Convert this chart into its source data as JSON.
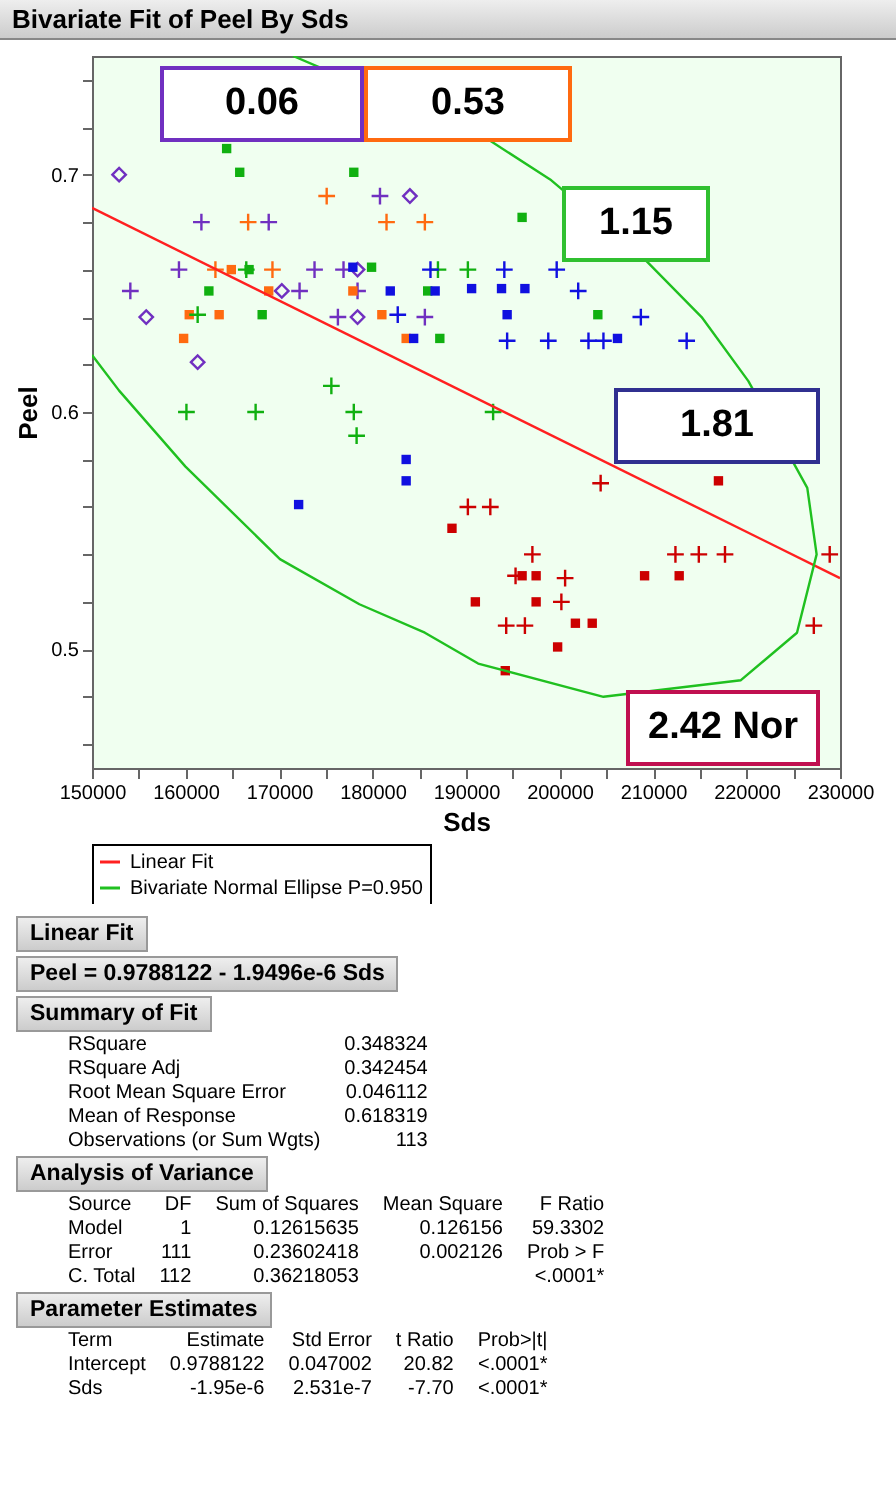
{
  "chart_data": {
    "type": "scatter",
    "title": "Bivariate Fit of Peel By Sds",
    "xlabel": "Sds",
    "ylabel": "Peel",
    "xlim": [
      150000,
      230000
    ],
    "xticks": [
      150000,
      {
        "value": 155000,
        "label": null
      },
      160000,
      {
        "value": 165000,
        "label": null
      },
      170000,
      {
        "value": 175000,
        "label": null
      },
      180000,
      {
        "value": 185000,
        "label": null
      },
      190000,
      {
        "value": 195000,
        "label": null
      },
      200000,
      {
        "value": 205000,
        "label": null
      },
      210000,
      {
        "value": 215000,
        "label": null
      },
      220000,
      {
        "value": 225000,
        "label": null
      },
      230000
    ],
    "ylim": [
      0.45,
      0.75
    ],
    "yticks": [
      {
        "value": 0.46,
        "label": null
      },
      {
        "value": 0.48,
        "label": null
      },
      0.5,
      {
        "value": 0.52,
        "label": null
      },
      {
        "value": 0.54,
        "label": null
      },
      {
        "value": 0.56,
        "label": null
      },
      {
        "value": 0.58,
        "label": null
      },
      0.6,
      {
        "value": 0.62,
        "label": null
      },
      {
        "value": 0.64,
        "label": null
      },
      {
        "value": 0.66,
        "label": null
      },
      {
        "value": 0.68,
        "label": null
      },
      0.7,
      {
        "value": 0.72,
        "label": null
      },
      {
        "value": 0.74,
        "label": null
      }
    ],
    "legend": "bottom",
    "series": [
      {
        "type": "scatter",
        "color": "#7030c0",
        "marker": "diamond",
        "x": [
          152900,
          184000,
          170300,
          155800,
          178400,
          161300,
          178400
        ],
        "values": [
          0.7,
          0.691,
          0.651,
          0.64,
          0.64,
          0.621,
          0.66
        ]
      },
      {
        "type": "scatter",
        "color": "#7030c0",
        "marker": "cross",
        "x": [
          180800,
          161700,
          168900,
          159300,
          173800,
          176900,
          154100,
          172200,
          176300,
          178400,
          185600
        ],
        "values": [
          0.691,
          0.68,
          0.68,
          0.66,
          0.66,
          0.66,
          0.651,
          0.651,
          0.64,
          0.651,
          0.64
        ]
      },
      {
        "type": "scatter",
        "color": "#ff6a10",
        "marker": "cross",
        "x": [
          175100,
          166700,
          181500,
          185600,
          163200,
          169300
        ],
        "values": [
          0.691,
          0.68,
          0.68,
          0.68,
          0.66,
          0.66
        ]
      },
      {
        "type": "scatter",
        "color": "#ff6a10",
        "marker": "square",
        "x": [
          164900,
          168900,
          160400,
          163600,
          159800,
          181000,
          183600,
          177900
        ],
        "values": [
          0.66,
          0.651,
          0.641,
          0.641,
          0.631,
          0.641,
          0.631,
          0.651
        ]
      },
      {
        "type": "scatter",
        "color": "#10b010",
        "marker": "square",
        "x": [
          164400,
          165800,
          178000,
          166800,
          179900,
          162500,
          168200,
          185900,
          187200,
          196000,
          204100
        ],
        "values": [
          0.711,
          0.701,
          0.701,
          0.66,
          0.661,
          0.651,
          0.641,
          0.651,
          0.631,
          0.682,
          0.641
        ]
      },
      {
        "type": "scatter",
        "color": "#10b010",
        "marker": "cross",
        "x": [
          161300,
          166500,
          175600,
          187000,
          190200,
          160100,
          167500,
          178000,
          178300,
          192900
        ],
        "values": [
          0.641,
          0.66,
          0.611,
          0.66,
          0.66,
          0.6,
          0.6,
          0.6,
          0.59,
          0.6
        ]
      },
      {
        "type": "scatter",
        "color": "#1010e0",
        "marker": "square",
        "x": [
          177900,
          181900,
          186700,
          184400,
          190600,
          193800,
          196300,
          194400,
          206200,
          183600,
          183600,
          172100
        ],
        "values": [
          0.661,
          0.651,
          0.651,
          0.631,
          0.652,
          0.652,
          0.652,
          0.641,
          0.631,
          0.58,
          0.571,
          0.561
        ]
      },
      {
        "type": "scatter",
        "color": "#1010e0",
        "marker": "cross",
        "x": [
          186200,
          182700,
          194100,
          199700,
          202000,
          208700,
          194400,
          198800,
          203100,
          204700,
          213600
        ],
        "values": [
          0.66,
          0.641,
          0.66,
          0.66,
          0.651,
          0.64,
          0.63,
          0.63,
          0.63,
          0.63,
          0.63
        ]
      },
      {
        "type": "scatter",
        "color": "#cc0000",
        "marker": "square",
        "x": [
          188500,
          217000,
          196000,
          197500,
          191000,
          197500,
          201700,
          203500,
          199800,
          194200,
          209100,
          212800
        ],
        "values": [
          0.551,
          0.571,
          0.531,
          0.531,
          0.52,
          0.52,
          0.511,
          0.511,
          0.501,
          0.491,
          0.531,
          0.531
        ]
      },
      {
        "type": "scatter",
        "color": "#cc0000",
        "marker": "cross",
        "x": [
          204400,
          190200,
          192600,
          197100,
          195300,
          200600,
          200200,
          194300,
          196300,
          212400,
          214900,
          217700,
          228900,
          227200
        ],
        "values": [
          0.57,
          0.56,
          0.56,
          0.54,
          0.531,
          0.53,
          0.52,
          0.51,
          0.51,
          0.54,
          0.54,
          0.54,
          0.54,
          0.51
        ]
      },
      {
        "type": "line",
        "name": "Linear Fit",
        "color": "#ff2020",
        "x": [
          150000,
          230000
        ],
        "values": [
          0.686,
          0.53
        ]
      },
      {
        "type": "line",
        "name": "Bivariate Normal Ellipse P=0.950",
        "color": "#20c020",
        "x": [
          171500,
          192300,
          199000,
          209200,
          215200,
          220200,
          226500,
          227500,
          225400,
          219400,
          204700,
          191300,
          185600,
          178600,
          170100,
          160000,
          152900,
          150000
        ],
        "values": [
          0.75,
          0.715,
          0.698,
          0.664,
          0.64,
          0.613,
          0.568,
          0.54,
          0.507,
          0.487,
          0.48,
          0.494,
          0.507,
          0.519,
          0.538,
          0.577,
          0.609,
          0.624
        ]
      }
    ],
    "annotations": [
      "0.06",
      "0.53",
      "1.15",
      "1.81",
      "2.42 Nor",
      "Linear Fit",
      "Peel = 0.9788122 - 1.9496e-6 Sds",
      "Summary of Fit",
      "RSquare\t0.348324",
      "RSquare Adj\t0.342454",
      "Root Mean Square Error\t0.046112",
      "Mean of Response\t0.618319",
      "Observations (or Sum Wgts)\t113",
      "Analysis of Variance",
      "Source\tDF\tSum of Squares\tMean Square\tF Ratio",
      "Model\t1\t0.12615635\t0.126156\t59.3302",
      "Error\t111\t0.23602418\t0.002126\tProb > F",
      "C. Total\t112\t0.36218053\t\t<.0001*",
      "Parameter Estimates",
      "Term\tEstimate\tStd Error\tt Ratio\tProb>|t|",
      "Intercept\t0.9788122\t0.047002\t20.82\t<.0001*",
      "Sds\t-1.95e-6\t2.531e-7\t-7.70\t<.0001*"
    ]
  }
}
